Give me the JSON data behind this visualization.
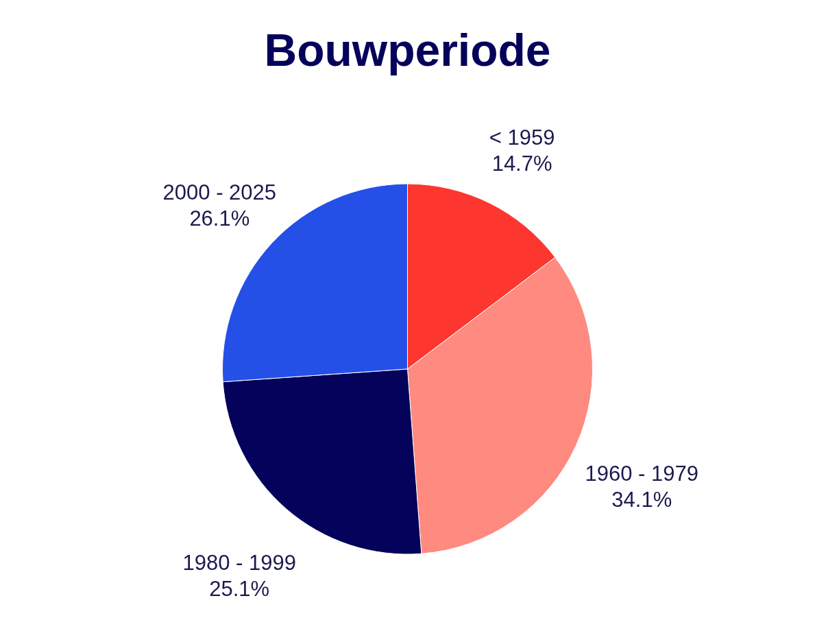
{
  "chart_data": {
    "type": "pie",
    "title": "Bouwperiode",
    "categories": [
      "< 1959",
      "1960 - 1979",
      "1980 - 1999",
      "2000 - 2025"
    ],
    "values": [
      14.7,
      34.1,
      25.1,
      26.1
    ],
    "value_labels": [
      "14.7%",
      "34.1%",
      "25.1%",
      "26.1%"
    ],
    "colors": [
      "#fe3630",
      "#fe8a80",
      "#04025a",
      "#2450e8"
    ],
    "legend": false
  }
}
